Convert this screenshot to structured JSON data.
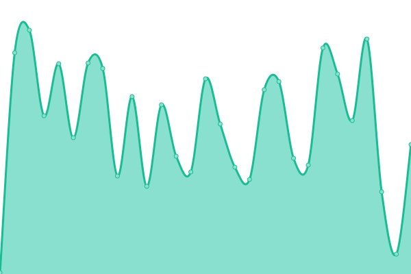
{
  "chart_data": {
    "type": "area",
    "title": "",
    "xlabel": "",
    "ylabel": "",
    "x": [
      0,
      1,
      2,
      3,
      4,
      5,
      6,
      7,
      8,
      9,
      10,
      11,
      12,
      13,
      14,
      15,
      16,
      17,
      18,
      19,
      20,
      21,
      22,
      23,
      24,
      25,
      26,
      27,
      28
    ],
    "series": [
      {
        "values": [
          2,
          323,
          356,
          231,
          307,
          199,
          308,
          300,
          143,
          259,
          128,
          247,
          172,
          149,
          285,
          219,
          156,
          138,
          269,
          281,
          169,
          159,
          330,
          292,
          224,
          343,
          120,
          29,
          189
        ]
      }
    ],
    "ylim": [
      0,
      400
    ],
    "grid": false,
    "axes_visible": false,
    "legend": "none",
    "colors": {
      "line": "#1abc94",
      "fill": "#89e0cf",
      "marker_fill": "#89e0cf"
    }
  }
}
